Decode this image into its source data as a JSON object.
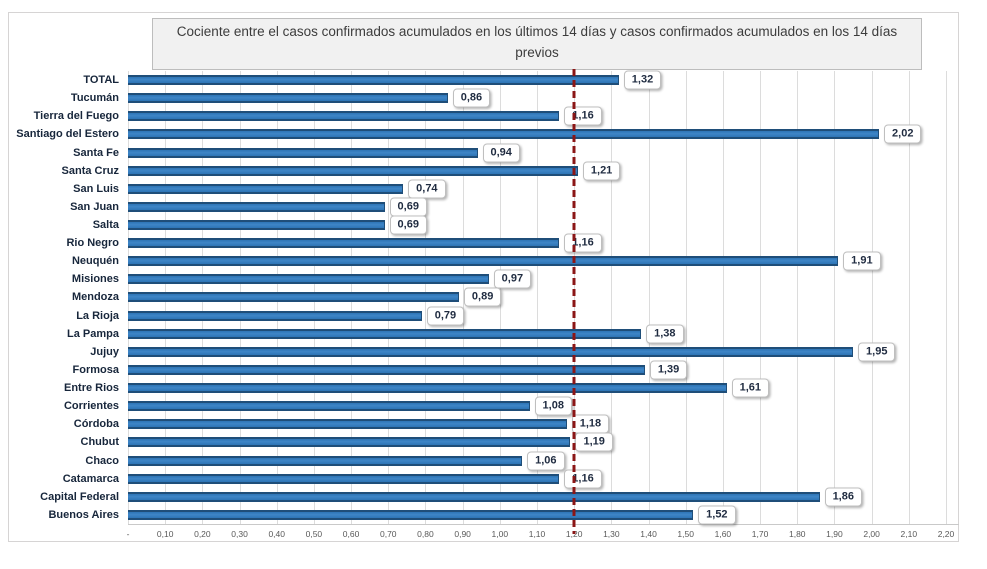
{
  "window": {
    "background": "#FFFFFF"
  },
  "chart_data": {
    "type": "bar",
    "orientation": "horizontal",
    "title": "Cociente entre el casos confirmados acumulados en los últimos 14 días y casos confirmados acumulados en los 14 días previos",
    "categories": [
      "TOTAL",
      "Tucumán",
      "Tierra del Fuego",
      "Santiago del Estero",
      "Santa Fe",
      "Santa Cruz",
      "San Luis",
      "San Juan",
      "Salta",
      "Rio Negro",
      "Neuquén",
      "Misiones",
      "Mendoza",
      "La Rioja",
      "La Pampa",
      "Jujuy",
      "Formosa",
      "Entre Rios",
      "Corrientes",
      "Córdoba",
      "Chubut",
      "Chaco",
      "Catamarca",
      "Capital Federal",
      "Buenos Aires"
    ],
    "values": [
      1.32,
      0.86,
      1.16,
      2.02,
      0.94,
      1.21,
      0.74,
      0.69,
      0.69,
      1.16,
      1.91,
      0.97,
      0.89,
      0.79,
      1.38,
      1.95,
      1.39,
      1.61,
      1.08,
      1.18,
      1.19,
      1.06,
      1.16,
      1.86,
      1.52
    ],
    "value_labels": [
      "1,32",
      "0,86",
      "1,16",
      "2,02",
      "0,94",
      "1,21",
      "0,74",
      "0,69",
      "0,69",
      "1,16",
      "1,91",
      "0,97",
      "0,89",
      "0,79",
      "1,38",
      "1,95",
      "1,39",
      "1,61",
      "1,08",
      "1,18",
      "1,19",
      "1,06",
      "1,16",
      "1,86",
      "1,52"
    ],
    "xlabel": "",
    "ylabel": "",
    "xlim": [
      0,
      2.2
    ],
    "x_tick_labels": [
      "-",
      "0,10",
      "0,20",
      "0,30",
      "0,40",
      "0,50",
      "0,60",
      "0,70",
      "0,80",
      "0,90",
      "1,00",
      "1,10",
      "1,20",
      "1,30",
      "1,40",
      "1,50",
      "1,60",
      "1,70",
      "1,80",
      "1,90",
      "2,00",
      "2,10",
      "2,20"
    ],
    "x_tick_step": 0.1,
    "grid": true,
    "legend": null,
    "reference_line": {
      "value": 1.2,
      "style": "dashed",
      "color": "#8B1616"
    },
    "colors": {
      "bar_fill": "#2E75B6",
      "bar_border": "#1F4E79",
      "value_box_bg": "#FFFFFF",
      "value_box_border": "#BFBFBF",
      "title_box_bg": "#F1F1F1",
      "title_box_border": "#BDBDBD",
      "gridline": "#DCDCDC"
    }
  }
}
